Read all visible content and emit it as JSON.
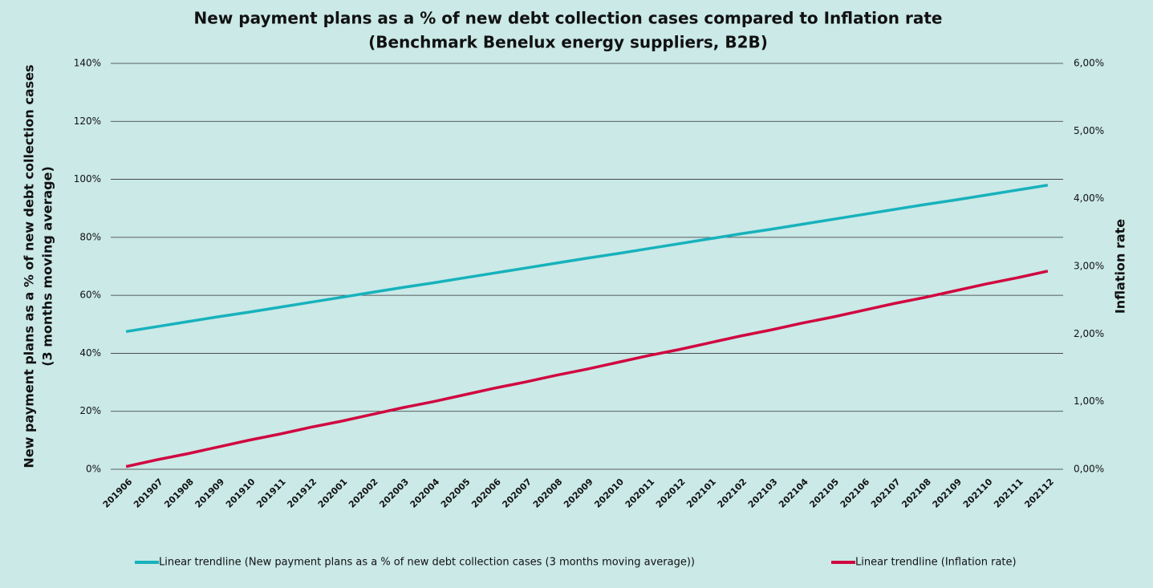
{
  "chart_data": {
    "type": "line",
    "title": "New payment plans as a % of new debt collection cases compared to Inflation rate",
    "subtitle": "(Benchmark Benelux energy suppliers, B2B)",
    "ylabel": [
      "New payment plans as a % of new debt collection cases",
      "(3 months moving average)"
    ],
    "y2label": "Inflation rate",
    "categories": [
      "201906",
      "201907",
      "201908",
      "201909",
      "201910",
      "201911",
      "201912",
      "202001",
      "202002",
      "202003",
      "202004",
      "202005",
      "202006",
      "202007",
      "202008",
      "202009",
      "202010",
      "202011",
      "202012",
      "202101",
      "202102",
      "202103",
      "202104",
      "202105",
      "202106",
      "202107",
      "202108",
      "202109",
      "202110",
      "202111",
      "202112"
    ],
    "series": [
      {
        "name": "Linear trendline (New payment plans as a % of new debt collection cases (3 months moving average))",
        "color": "#17b2bc",
        "values": [
          47.5,
          49.2,
          50.9,
          52.6,
          54.2,
          55.9,
          57.6,
          59.3,
          61.0,
          62.7,
          64.3,
          66.0,
          67.7,
          69.4,
          71.1,
          72.8,
          74.4,
          76.1,
          77.8,
          79.5,
          81.2,
          82.8,
          84.5,
          86.2,
          87.9,
          89.6,
          91.3,
          92.9,
          94.6,
          96.3,
          98.0
        ]
      },
      {
        "name": "Linear trendline (Inflation rate)",
        "color": "#d1063f",
        "axis": "y2",
        "values": [
          0.04,
          0.14,
          0.23,
          0.33,
          0.43,
          0.52,
          0.62,
          0.71,
          0.81,
          0.91,
          1.0,
          1.1,
          1.2,
          1.29,
          1.39,
          1.48,
          1.58,
          1.68,
          1.77,
          1.87,
          1.97,
          2.06,
          2.16,
          2.25,
          2.35,
          2.45,
          2.54,
          2.64,
          2.74,
          2.83,
          2.93
        ]
      }
    ],
    "ylim": [
      0,
      140
    ],
    "yticks": [
      {
        "value": 0,
        "label": "0%"
      },
      {
        "value": 20,
        "label": "20%"
      },
      {
        "value": 40,
        "label": "40%"
      },
      {
        "value": 60,
        "label": "60%"
      },
      {
        "value": 80,
        "label": "80%"
      },
      {
        "value": 100,
        "label": "100%"
      },
      {
        "value": 120,
        "label": "120%"
      },
      {
        "value": 140,
        "label": "140%"
      }
    ],
    "y2lim": [
      0,
      6
    ],
    "y2ticks": [
      {
        "value": 0,
        "label": "0,00%"
      },
      {
        "value": 1,
        "label": "1,00%"
      },
      {
        "value": 2,
        "label": "2,00%"
      },
      {
        "value": 3,
        "label": "3,00%"
      },
      {
        "value": 4,
        "label": "4,00%"
      },
      {
        "value": 5,
        "label": "5,00%"
      },
      {
        "value": 6,
        "label": "6,00%"
      }
    ],
    "grid": true,
    "legend": "bottom"
  }
}
